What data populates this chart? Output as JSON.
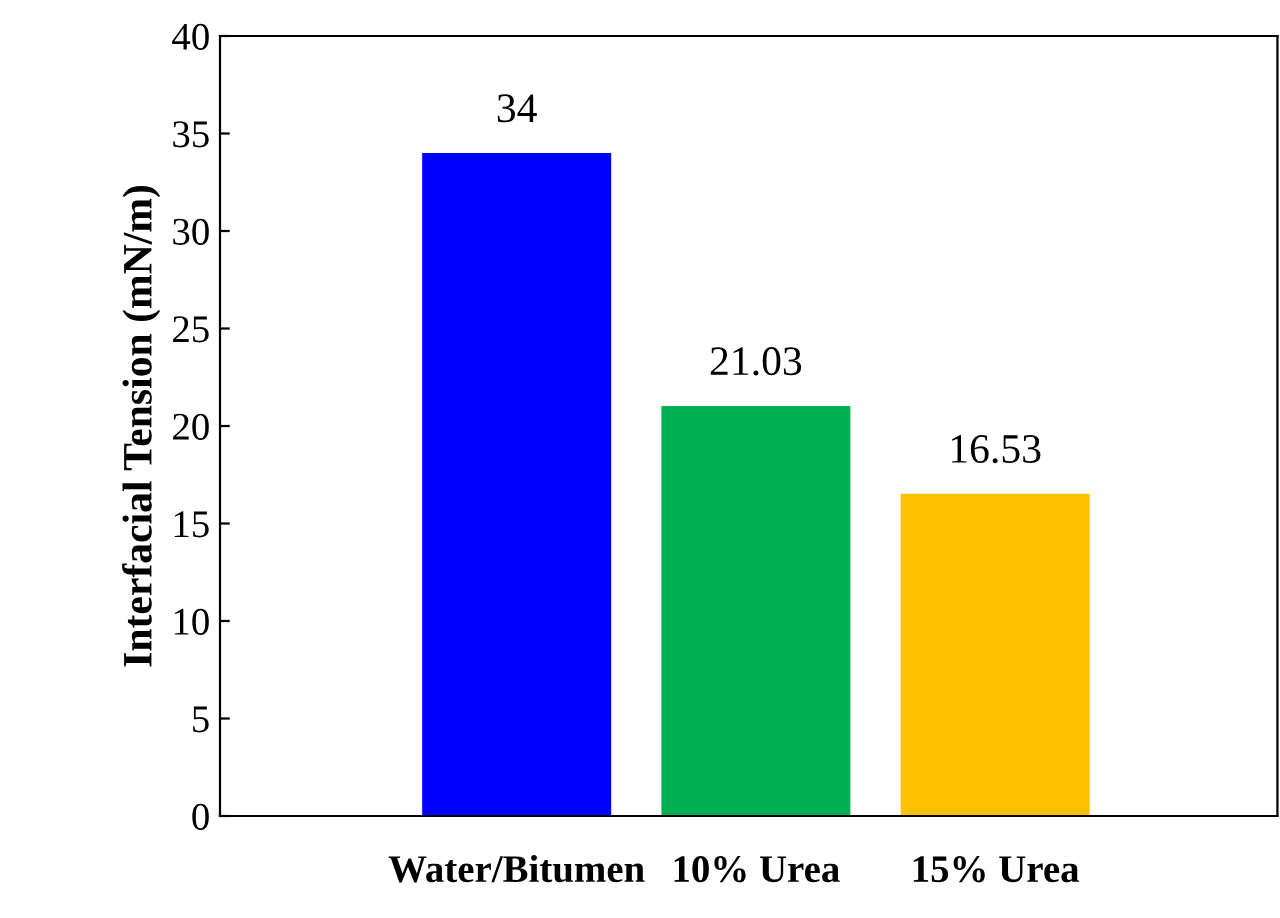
{
  "chart_data": {
    "type": "bar",
    "ylabel": "Interfacial Tension (mN/m)",
    "categories": [
      "Water/Bitumen",
      "10% Urea",
      "15% Urea"
    ],
    "values": [
      34,
      21.03,
      16.53
    ],
    "colors": [
      "#0000ff",
      "#00b050",
      "#ffc000"
    ],
    "ylim": [
      0,
      40
    ],
    "yticks": [
      0,
      5,
      10,
      15,
      20,
      25,
      30,
      35,
      40
    ],
    "data_labels": true,
    "grid": false,
    "legend": false
  }
}
